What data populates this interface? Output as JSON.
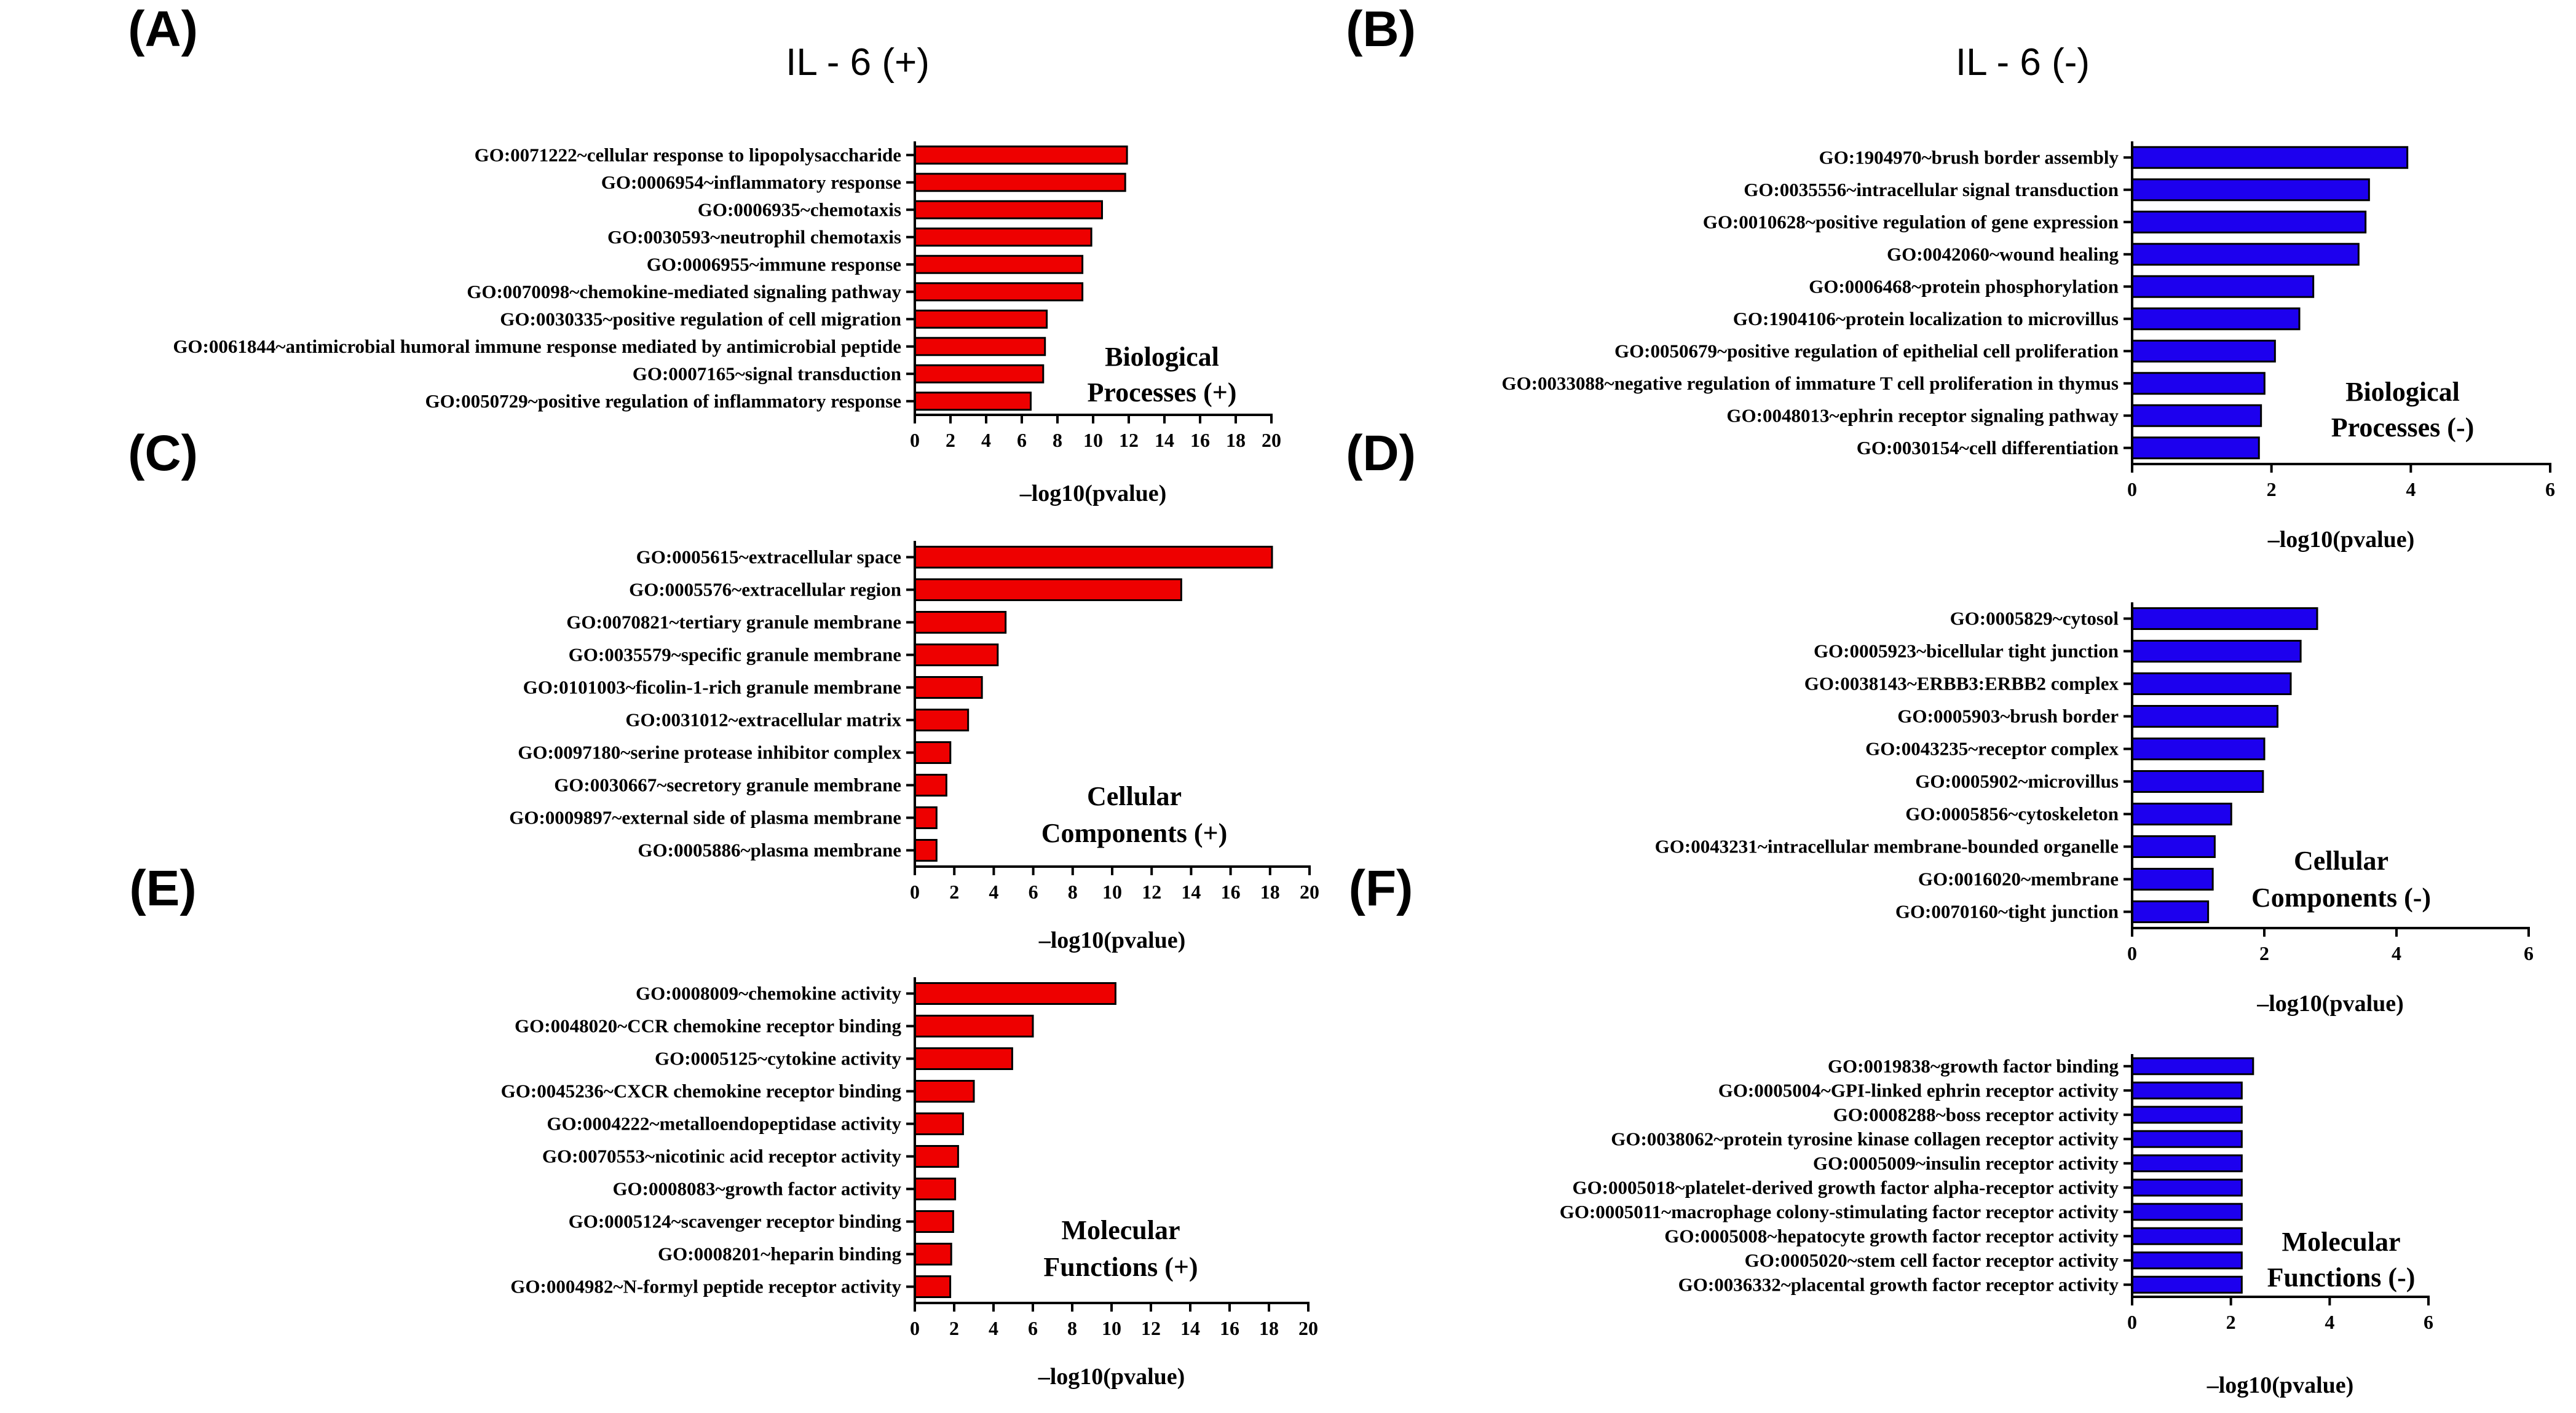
{
  "column_titles": {
    "left": "IL - 6 (+)",
    "right": "IL - 6 (-)"
  },
  "colors": {
    "positive": "#ee0000",
    "negative": "#1d00ee"
  },
  "chart_data": [
    {
      "id": "A",
      "type": "bar",
      "orientation": "horizontal",
      "panel_label": "(A)",
      "caption": [
        "Biological",
        "Processes (+)"
      ],
      "xlabel": "–log10(pvalue)",
      "xlim": [
        0,
        20
      ],
      "xticks": [
        0,
        2,
        4,
        6,
        8,
        10,
        12,
        14,
        16,
        18,
        20
      ],
      "color_key": "positive",
      "categories": [
        "GO:0071222~cellular response to lipopolysaccharide",
        "GO:0006954~inflammatory response",
        "GO:0006935~chemotaxis",
        "GO:0030593~neutrophil chemotaxis",
        "GO:0006955~immune response",
        "GO:0070098~chemokine-mediated signaling pathway",
        "GO:0030335~positive regulation of cell migration",
        "GO:0061844~antimicrobial humoral immune response mediated by antimicrobial peptide",
        "GO:0007165~signal transduction",
        "GO:0050729~positive regulation of inflammatory response"
      ],
      "values": [
        11.9,
        11.8,
        10.5,
        9.9,
        9.4,
        9.4,
        7.4,
        7.3,
        7.2,
        6.5
      ]
    },
    {
      "id": "B",
      "type": "bar",
      "orientation": "horizontal",
      "panel_label": "(B)",
      "caption": [
        "Biological",
        "Processes (-)"
      ],
      "xlabel": "–log10(pvalue)",
      "xlim": [
        0,
        6
      ],
      "xticks": [
        0,
        2,
        4,
        6
      ],
      "color_key": "negative",
      "categories": [
        "GO:1904970~brush border assembly",
        "GO:0035556~intracellular signal transduction",
        "GO:0010628~positive regulation of gene expression",
        "GO:0042060~wound healing",
        "GO:0006468~protein phosphorylation",
        "GO:1904106~protein localization to microvillus",
        "GO:0050679~positive regulation of epithelial cell proliferation",
        "GO:0033088~negative regulation of immature T cell proliferation in thymus",
        "GO:0048013~ephrin receptor signaling pathway",
        "GO:0030154~cell differentiation"
      ],
      "values": [
        3.95,
        3.4,
        3.35,
        3.25,
        2.6,
        2.4,
        2.05,
        1.9,
        1.85,
        1.82
      ]
    },
    {
      "id": "C",
      "type": "bar",
      "orientation": "horizontal",
      "panel_label": "(C)",
      "caption": [
        "Cellular",
        "Components (+)"
      ],
      "xlabel": "–log10(pvalue)",
      "xlim": [
        0,
        20
      ],
      "xticks": [
        0,
        2,
        4,
        6,
        8,
        10,
        12,
        14,
        16,
        18,
        20
      ],
      "color_key": "positive",
      "categories": [
        "GO:0005615~extracellular space",
        "GO:0005576~extracellular region",
        "GO:0070821~tertiary granule membrane",
        "GO:0035579~specific granule membrane",
        "GO:0101003~ficolin-1-rich granule membrane",
        "GO:0031012~extracellular matrix",
        "GO:0097180~serine protease inhibitor complex",
        "GO:0030667~secretory granule membrane",
        "GO:0009897~external side of plasma membrane",
        "GO:0005886~plasma membrane"
      ],
      "values": [
        18.1,
        13.5,
        4.6,
        4.2,
        3.4,
        2.7,
        1.8,
        1.6,
        1.1,
        1.1
      ]
    },
    {
      "id": "D",
      "type": "bar",
      "orientation": "horizontal",
      "panel_label": "(D)",
      "caption": [
        "Cellular",
        "Components (-)"
      ],
      "xlabel": "–log10(pvalue)",
      "xlim": [
        0,
        6
      ],
      "xticks": [
        0,
        2,
        4,
        6
      ],
      "color_key": "negative",
      "categories": [
        "GO:0005829~cytosol",
        "GO:0005923~bicellular tight junction",
        "GO:0038143~ERBB3:ERBB2 complex",
        "GO:0005903~brush border",
        "GO:0043235~receptor complex",
        "GO:0005902~microvillus",
        "GO:0005856~cytoskeleton",
        "GO:0043231~intracellular membrane-bounded organelle",
        "GO:0016020~membrane",
        "GO:0070160~tight junction"
      ],
      "values": [
        2.8,
        2.55,
        2.4,
        2.2,
        2.0,
        1.98,
        1.5,
        1.25,
        1.22,
        1.15
      ]
    },
    {
      "id": "E",
      "type": "bar",
      "orientation": "horizontal",
      "panel_label": "(E)",
      "caption": [
        "Molecular",
        "Functions (+)"
      ],
      "xlabel": "–log10(pvalue)",
      "xlim": [
        0,
        20
      ],
      "xticks": [
        0,
        2,
        4,
        6,
        8,
        10,
        12,
        14,
        16,
        18,
        20
      ],
      "color_key": "positive",
      "categories": [
        "GO:0008009~chemokine activity",
        "GO:0048020~CCR chemokine receptor binding",
        "GO:0005125~cytokine activity",
        "GO:0045236~CXCR chemokine receptor binding",
        "GO:0004222~metalloendopeptidase activity",
        "GO:0070553~nicotinic acid receptor activity",
        "GO:0008083~growth factor activity",
        "GO:0005124~scavenger receptor binding",
        "GO:0008201~heparin binding",
        "GO:0004982~N-formyl peptide receptor activity"
      ],
      "values": [
        10.2,
        6.0,
        4.95,
        3.0,
        2.45,
        2.2,
        2.05,
        1.95,
        1.85,
        1.8
      ]
    },
    {
      "id": "F",
      "type": "bar",
      "orientation": "horizontal",
      "panel_label": "(F)",
      "caption": [
        "Molecular",
        "Functions (-)"
      ],
      "xlabel": "–log10(pvalue)",
      "xlim": [
        0,
        6
      ],
      "xticks": [
        0,
        2,
        4,
        6
      ],
      "color_key": "negative",
      "categories": [
        "GO:0019838~growth factor binding",
        "GO:0005004~GPI-linked ephrin receptor activity",
        "GO:0008288~boss receptor activity",
        "GO:0038062~protein tyrosine kinase collagen receptor activity",
        "GO:0005009~insulin receptor activity",
        "GO:0005018~platelet-derived growth factor alpha-receptor activity",
        "GO:0005011~macrophage colony-stimulating factor receptor activity",
        "GO:0005008~hepatocyte growth factor receptor activity",
        "GO:0005020~stem cell factor receptor activity",
        "GO:0036332~placental growth factor receptor activity"
      ],
      "values": [
        2.45,
        2.22,
        2.22,
        2.22,
        2.22,
        2.22,
        2.22,
        2.22,
        2.22,
        2.22
      ]
    }
  ]
}
